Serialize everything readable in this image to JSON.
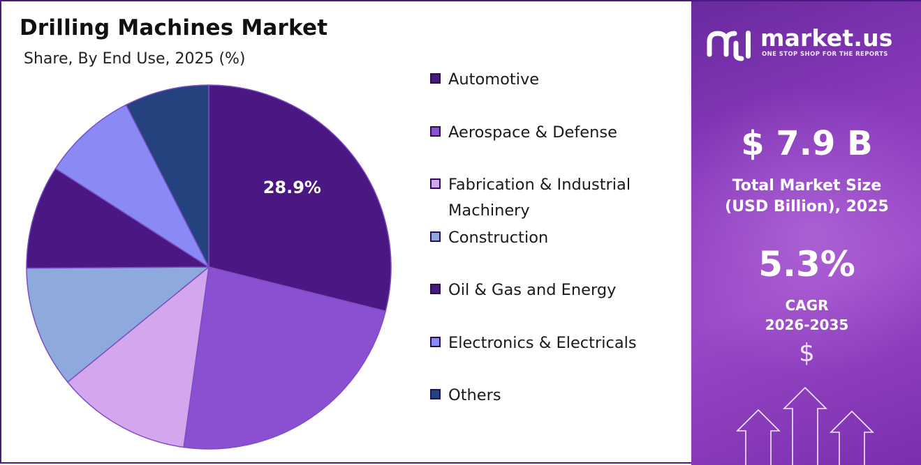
{
  "chart_data": {
    "type": "pie",
    "title": "Drilling Machines Market",
    "subtitle": "Share, By End Use, 2025 (%)",
    "categories": [
      "Automotive",
      "Aerospace & Defense",
      "Fabrication & Industrial Machinery",
      "Construction",
      "Oil & Gas and Energy",
      "Electronics & Electricals",
      "Others"
    ],
    "values": [
      28.9,
      23.3,
      11.9,
      10.8,
      9.2,
      8.4,
      7.5
    ],
    "colors": [
      "#4b1782",
      "#8b4fd1",
      "#d3a6ee",
      "#8ea9dc",
      "#4b1782",
      "#8a8af7",
      "#23427e"
    ],
    "data_labels": [
      {
        "category": "Automotive",
        "text": "28.9%"
      }
    ],
    "legend_position": "right"
  },
  "brand": {
    "name": "market.us",
    "tagline": "ONE STOP SHOP FOR THE REPORTS"
  },
  "stats": {
    "market_size": "$ 7.9 B",
    "market_size_label_line1": "Total Market Size",
    "market_size_label_line2": "(USD Billion), 2025",
    "cagr_value": "5.3%",
    "cagr_label_line1": "CAGR",
    "cagr_label_line2": "2026-2035",
    "currency_symbol": "$"
  }
}
